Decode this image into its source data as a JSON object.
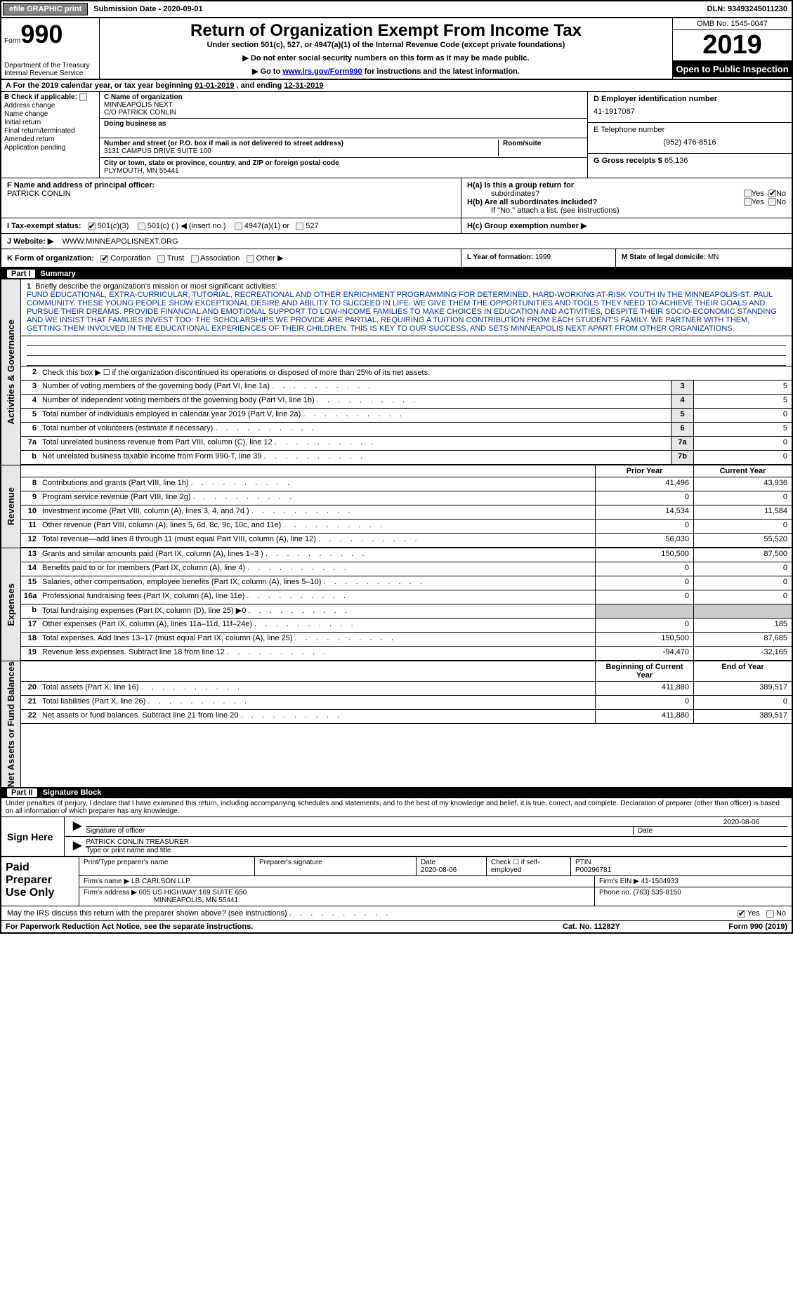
{
  "topbar": {
    "efile": "efile GRAPHIC print",
    "submission": "Submission Date - 2020-09-01",
    "dln": "DLN: 93493245011230"
  },
  "hdr": {
    "form_prefix": "Form",
    "form_num": "990",
    "dept1": "Department of the Treasury",
    "dept2": "Internal Revenue Service",
    "title": "Return of Organization Exempt From Income Tax",
    "sub1": "Under section 501(c), 527, or 4947(a)(1) of the Internal Revenue Code (except private foundations)",
    "sub2": "▶ Do not enter social security numbers on this form as it may be made public.",
    "sub3_pre": "▶ Go to ",
    "sub3_link": "www.irs.gov/Form990",
    "sub3_post": " for instructions and the latest information.",
    "omb": "OMB No. 1545-0047",
    "year": "2019",
    "otp": "Open to Public Inspection"
  },
  "rowA": {
    "pre": "A  For the 2019 calendar year, or tax year beginning ",
    "begin": "01-01-2019",
    "mid": "    , and ending ",
    "end": "12-31-2019"
  },
  "colB": {
    "hdr": "B Check if applicable:",
    "items": [
      "Address change",
      "Name change",
      "Initial return",
      "Final return/terminated",
      "Amended return",
      "Application pending"
    ]
  },
  "colC": {
    "name_lbl": "C Name of organization",
    "name1": "MINNEAPOLIS NEXT",
    "name2": "C/O PATRICK CONLIN",
    "dba_lbl": "Doing business as",
    "addr_lbl": "Number and street (or P.O. box if mail is not delivered to street address)",
    "addr": "3131 CAMPUS DRIVE SUITE 100",
    "room_lbl": "Room/suite",
    "city_lbl": "City or town, state or province, country, and ZIP or foreign postal code",
    "city": "PLYMOUTH, MN  55441"
  },
  "colDE": {
    "d_lbl": "D Employer identification number",
    "ein": "41-1917087",
    "e_lbl": "E Telephone number",
    "phone": "(952) 476-8516",
    "g_lbl": "G Gross receipts $ ",
    "gross": "65,136"
  },
  "rowF": {
    "lbl": "F Name and address of principal officer:",
    "name": "PATRICK CONLIN",
    "ha": "H(a)  Is this a group return for",
    "ha2": "subordinates?",
    "hb": "H(b)  Are all subordinates included?",
    "hb2": "If \"No,\" attach a list. (see instructions)",
    "hc": "H(c)  Group exemption number ▶",
    "yes": "Yes",
    "no": "No"
  },
  "rowI": {
    "lbl": "I   Tax-exempt status:",
    "o1": "501(c)(3)",
    "o2": "501(c) (   ) ◀ (insert no.)",
    "o3": "4947(a)(1) or",
    "o4": "527"
  },
  "rowJ": {
    "lbl": "J  Website: ▶",
    "val": "WWW.MINNEAPOLISNEXT.ORG"
  },
  "rowK": {
    "lbl": "K Form of organization:",
    "o1": "Corporation",
    "o2": "Trust",
    "o3": "Association",
    "o4": "Other ▶",
    "l_lbl": "L Year of formation: ",
    "l_val": "1999",
    "m_lbl": "M State of legal domicile: ",
    "m_val": "MN"
  },
  "parts": {
    "p1": "Part I",
    "p1t": "Summary",
    "p2": "Part II",
    "p2t": "Signature Block"
  },
  "vlabels": {
    "ag": "Activities & Governance",
    "rev": "Revenue",
    "exp": "Expenses",
    "nab": "Net Assets or Fund Balances"
  },
  "mission": {
    "num": "1",
    "lbl": "Briefly describe the organization's mission or most significant activities:",
    "txt": "FUND EDUCATIONAL, EXTRA-CURRICULAR, TUTORIAL, RECREATIONAL AND OTHER ENRICHMENT PROGRAMMING FOR DETERMINED, HARD-WORKING AT-RISK YOUTH IN THE MINNEAPOLIS-ST. PAUL COMMUNITY. THESE YOUNG PEOPLE SHOW EXCEPTIONAL DESIRE AND ABILITY TO SUCCEED IN LIFE. WE GIVE THEM THE OPPORTUNITIES AND TOOLS THEY NEED TO ACHIEVE THEIR GOALS AND PURSUE THEIR DREAMS. PROVIDE FINANCIAL AND EMOTIONAL SUPPORT TO LOW-INCOME FAMILIES TO MAKE CHOICES IN EDUCATION AND ACTIVITIES, DESPITE THEIR SOCIO-ECONOMIC STANDING AND WE INSIST THAT FAMILIES INVEST TOO: THE SCHOLARSHIPS WE PROVIDE ARE PARTIAL, REQUIRING A TUITION CONTRIBUTION FROM EACH STUDENT'S FAMILY. WE PARTNER WITH THEM, GETTING THEM INVOLVED IN THE EDUCATIONAL EXPERIENCES OF THEIR CHILDREN. THIS IS KEY TO OUR SUCCESS, AND SETS MINNEAPOLIS NEXT APART FROM OTHER ORGANIZATIONS."
  },
  "ag_lines": [
    {
      "n": "2",
      "d": "Check this box ▶ ☐  if the organization discontinued its operations or disposed of more than 25% of its net assets."
    },
    {
      "n": "3",
      "d": "Number of voting members of the governing body (Part VI, line 1a)",
      "b": "3",
      "v": "5"
    },
    {
      "n": "4",
      "d": "Number of independent voting members of the governing body (Part VI, line 1b)",
      "b": "4",
      "v": "5"
    },
    {
      "n": "5",
      "d": "Total number of individuals employed in calendar year 2019 (Part V, line 2a)",
      "b": "5",
      "v": "0"
    },
    {
      "n": "6",
      "d": "Total number of volunteers (estimate if necessary)",
      "b": "6",
      "v": "5"
    },
    {
      "n": "7a",
      "d": "Total unrelated business revenue from Part VIII, column (C), line 12",
      "b": "7a",
      "v": "0"
    },
    {
      "n": "b",
      "d": "Net unrelated business taxable income from Form 990-T, line 39",
      "b": "7b",
      "v": "0"
    }
  ],
  "yr_hdr": {
    "py": "Prior Year",
    "cy": "Current Year"
  },
  "rev_lines": [
    {
      "n": "8",
      "d": "Contributions and grants (Part VIII, line 1h)",
      "py": "41,496",
      "cy": "43,936"
    },
    {
      "n": "9",
      "d": "Program service revenue (Part VIII, line 2g)",
      "py": "0",
      "cy": "0"
    },
    {
      "n": "10",
      "d": "Investment income (Part VIII, column (A), lines 3, 4, and 7d )",
      "py": "14,534",
      "cy": "11,584"
    },
    {
      "n": "11",
      "d": "Other revenue (Part VIII, column (A), lines 5, 6d, 8c, 9c, 10c, and 11e)",
      "py": "0",
      "cy": "0"
    },
    {
      "n": "12",
      "d": "Total revenue—add lines 8 through 11 (must equal Part VIII, column (A), line 12)",
      "py": "56,030",
      "cy": "55,520"
    }
  ],
  "exp_lines": [
    {
      "n": "13",
      "d": "Grants and similar amounts paid (Part IX, column (A), lines 1–3 )",
      "py": "150,500",
      "cy": "87,500"
    },
    {
      "n": "14",
      "d": "Benefits paid to or for members (Part IX, column (A), line 4)",
      "py": "0",
      "cy": "0"
    },
    {
      "n": "15",
      "d": "Salaries, other compensation, employee benefits (Part IX, column (A), lines 5–10)",
      "py": "0",
      "cy": "0"
    },
    {
      "n": "16a",
      "d": "Professional fundraising fees (Part IX, column (A), line 11e)",
      "py": "0",
      "cy": "0"
    },
    {
      "n": "b",
      "d": "Total fundraising expenses (Part IX, column (D), line 25) ▶0",
      "py": "",
      "cy": "",
      "shade": true
    },
    {
      "n": "17",
      "d": "Other expenses (Part IX, column (A), lines 11a–11d, 11f–24e)",
      "py": "0",
      "cy": "185"
    },
    {
      "n": "18",
      "d": "Total expenses. Add lines 13–17 (must equal Part IX, column (A), line 25)",
      "py": "150,500",
      "cy": "87,685"
    },
    {
      "n": "19",
      "d": "Revenue less expenses. Subtract line 18 from line 12",
      "py": "-94,470",
      "cy": "-32,165"
    }
  ],
  "bal_hdr": {
    "py": "Beginning of Current Year",
    "cy": "End of Year"
  },
  "nab_lines": [
    {
      "n": "20",
      "d": "Total assets (Part X, line 16)",
      "py": "411,880",
      "cy": "389,517"
    },
    {
      "n": "21",
      "d": "Total liabilities (Part X, line 26)",
      "py": "0",
      "cy": "0"
    },
    {
      "n": "22",
      "d": "Net assets or fund balances. Subtract line 21 from line 20",
      "py": "411,880",
      "cy": "389,517"
    }
  ],
  "sig": {
    "decl": "Under penalties of perjury, I declare that I have examined this return, including accompanying schedules and statements, and to the best of my knowledge and belief, it is true, correct, and complete. Declaration of preparer (other than officer) is based on all information of which preparer has any knowledge.",
    "here": "Sign Here",
    "sig_lbl": "Signature of officer",
    "date_lbl": "Date",
    "date": "2020-08-06",
    "name": "PATRICK CONLIN  TREASURER",
    "name_lbl": "Type or print name and title"
  },
  "prep": {
    "title": "Paid Preparer Use Only",
    "h1": "Print/Type preparer's name",
    "h2": "Preparer's signature",
    "h3": "Date",
    "date": "2020-08-06",
    "h4": "Check ☐ if self-employed",
    "h5": "PTIN",
    "ptin": "P00296781",
    "fn_lbl": "Firm's name    ▶ ",
    "fn": "LB CARLSON LLP",
    "fein_lbl": "Firm's EIN ▶ ",
    "fein": "41-1504933",
    "fa_lbl": "Firm's address ▶ ",
    "fa1": "605 US HIGHWAY 169 SUITE 650",
    "fa2": "MINNEAPOLIS, MN  55441",
    "ph_lbl": "Phone no. ",
    "ph": "(763) 535-8150"
  },
  "may": {
    "q": "May the IRS discuss this return with the preparer shown above? (see instructions)",
    "yes": "Yes",
    "no": "No"
  },
  "footer": {
    "l": "For Paperwork Reduction Act Notice, see the separate instructions.",
    "m": "Cat. No. 11282Y",
    "r": "Form 990 (2019)"
  }
}
